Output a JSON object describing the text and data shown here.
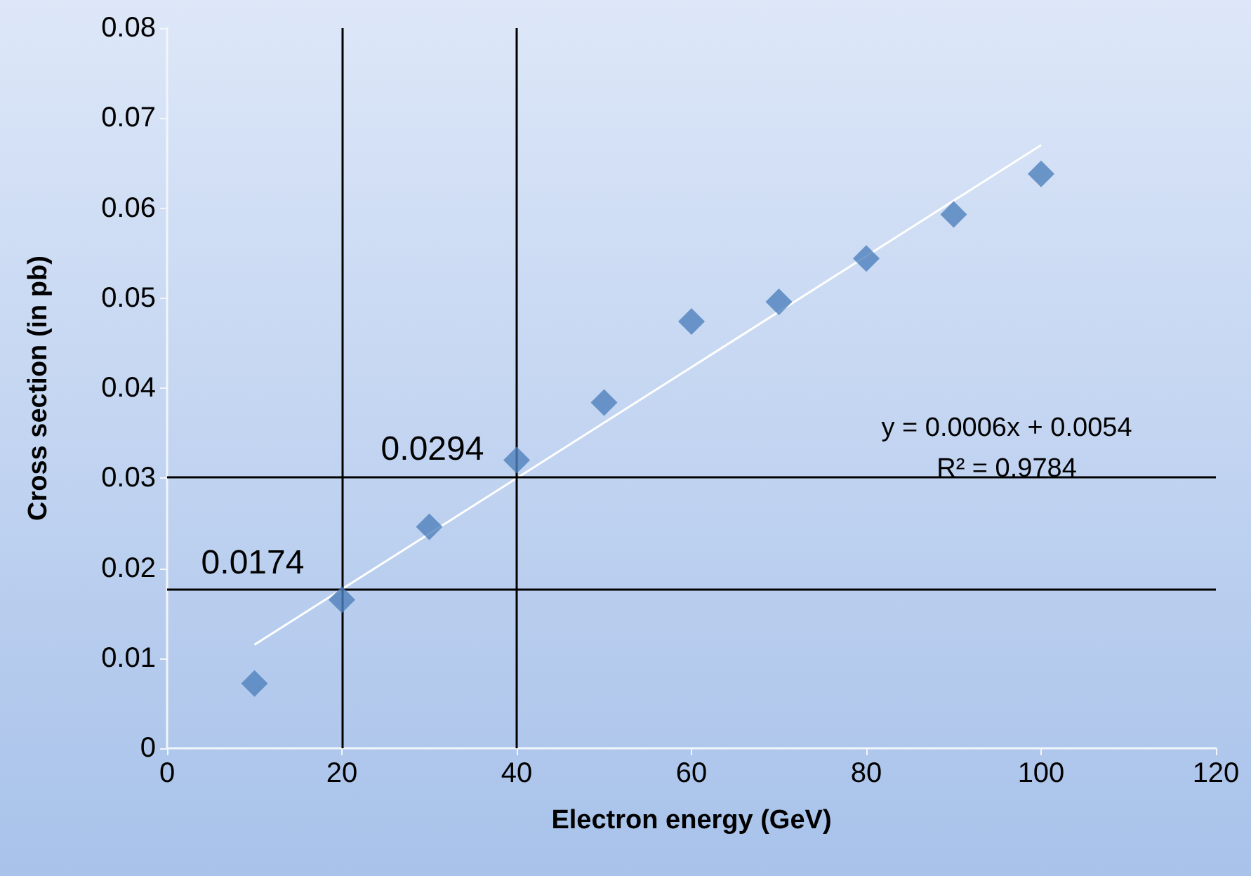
{
  "chart_data": {
    "type": "scatter",
    "xlabel": "Electron energy (GeV)",
    "ylabel": "Cross section (in pb)",
    "x": [
      10,
      20,
      30,
      40,
      50,
      60,
      70,
      80,
      90,
      100
    ],
    "series": [
      {
        "color": "#4f81bd",
        "marker": "diamond",
        "values": [
          0.0072,
          0.0165,
          0.0246,
          0.032,
          0.0384,
          0.0474,
          0.0496,
          0.0544,
          0.0593,
          0.0638
        ]
      },
      {
        "type": "line",
        "color": "#ffffff",
        "marker": "none",
        "x": [
          10,
          100
        ],
        "values": [
          0.0115,
          0.067
        ]
      }
    ],
    "xlim": [
      0,
      120
    ],
    "xticks": [
      0,
      20,
      40,
      60,
      80,
      100,
      120
    ],
    "ylim": [
      0,
      0.08
    ],
    "yticks": [
      0,
      0.01,
      0.02,
      0.03,
      0.04,
      0.05,
      0.06,
      0.07,
      0.08
    ],
    "ref_lines": [
      {
        "axis": "x",
        "value": 20,
        "color": "#000000"
      },
      {
        "axis": "x",
        "value": 40,
        "color": "#000000"
      },
      {
        "axis": "y",
        "value": 0.0176,
        "color": "#000000"
      },
      {
        "axis": "y",
        "value": 0.0301,
        "color": "#000000"
      }
    ],
    "annotations": [
      "0.0174",
      "0.0294",
      "y = 0.0006x + 0.0054",
      "R² = 0.9784"
    ],
    "tick_labels": true
  }
}
